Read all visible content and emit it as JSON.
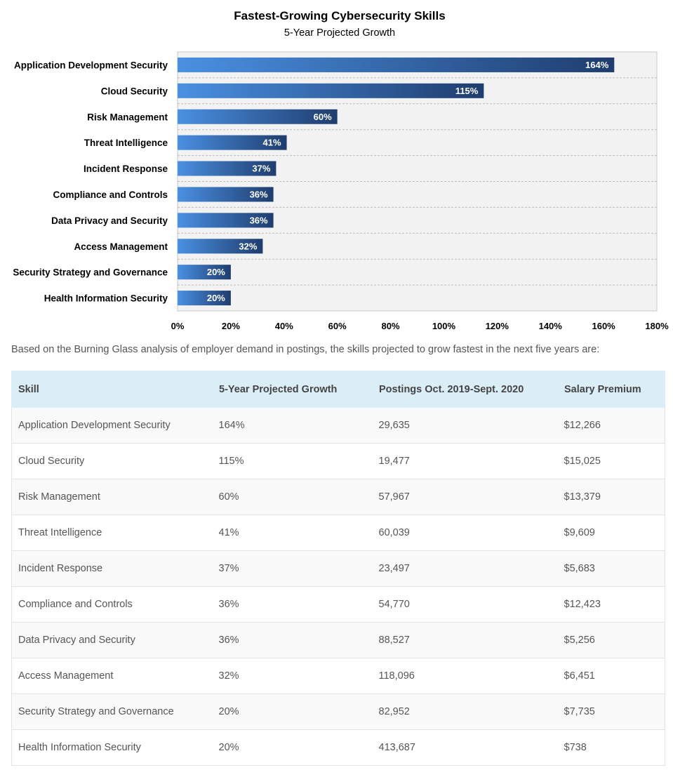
{
  "chart_data": {
    "type": "bar",
    "orientation": "horizontal",
    "title": "Fastest-Growing Cybersecurity Skills",
    "subtitle": "5-Year Projected Growth",
    "categories": [
      "Application Development Security",
      "Cloud Security",
      "Risk Management",
      "Threat Intelligence",
      "Incident Response",
      "Compliance and Controls",
      "Data Privacy and Security",
      "Access Management",
      "Security Strategy and Governance",
      "Health Information Security"
    ],
    "values": [
      164,
      115,
      60,
      41,
      37,
      36,
      36,
      32,
      20,
      20
    ],
    "value_labels": [
      "164%",
      "115%",
      "60%",
      "41%",
      "37%",
      "36%",
      "36%",
      "32%",
      "20%",
      "20%"
    ],
    "xlim": [
      0,
      180
    ],
    "x_ticks": [
      0,
      20,
      40,
      60,
      80,
      100,
      120,
      140,
      160,
      180
    ],
    "x_tick_labels": [
      "0%",
      "20%",
      "40%",
      "60%",
      "80%",
      "100%",
      "120%",
      "140%",
      "160%",
      "180%"
    ],
    "grid": "horizontal dashed",
    "plot_background": "#f2f2f2",
    "bar_color_start": "#4a90e2",
    "bar_color_end": "#1f3d6e"
  },
  "intro_text": "Based on the Burning Glass analysis of employer demand in postings, the skills projected to grow fastest in the next five years are:",
  "table": {
    "headers": [
      "Skill",
      "5-Year Projected Growth",
      "Postings Oct. 2019-Sept. 2020",
      "Salary Premium"
    ],
    "rows": [
      [
        "Application Development Security",
        "164%",
        "29,635",
        "$12,266"
      ],
      [
        "Cloud Security",
        "115%",
        "19,477",
        "$15,025"
      ],
      [
        "Risk Management",
        "60%",
        "57,967",
        "$13,379"
      ],
      [
        "Threat Intelligence",
        "41%",
        "60,039",
        "$9,609"
      ],
      [
        "Incident Response",
        "37%",
        "23,497",
        "$5,683"
      ],
      [
        "Compliance and Controls",
        "36%",
        "54,770",
        "$12,423"
      ],
      [
        "Data Privacy and Security",
        "36%",
        "88,527",
        "$5,256"
      ],
      [
        "Access Management",
        "32%",
        "118,096",
        "$6,451"
      ],
      [
        "Security Strategy and Governance",
        "20%",
        "82,952",
        "$7,735"
      ],
      [
        "Health Information Security",
        "20%",
        "413,687",
        "$738"
      ]
    ]
  }
}
